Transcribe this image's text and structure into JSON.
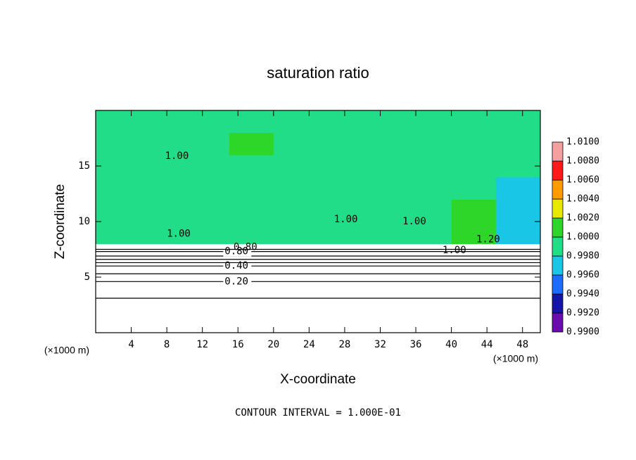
{
  "chart_data": {
    "type": "heatmap",
    "title": "saturation ratio",
    "x_label": "X-coordinate",
    "y_label": "Z-coordinate",
    "x_unit": "(×1000 m)",
    "footnote": "CONTOUR INTERVAL = 1.000E-01",
    "xlim": [
      0,
      50
    ],
    "ylim": [
      0,
      20
    ],
    "xticks": [
      4,
      8,
      12,
      16,
      20,
      24,
      28,
      32,
      36,
      40,
      44,
      48
    ],
    "yticks": [
      5,
      10,
      15
    ],
    "x_edges": [
      0,
      5,
      10,
      15,
      20,
      25,
      30,
      35,
      40,
      45,
      50
    ],
    "z_edges": [
      0,
      2,
      4,
      6,
      8,
      10,
      12,
      14,
      16,
      18,
      20
    ],
    "values": [
      [
        0.1,
        0.1,
        0.1,
        0.1,
        0.1,
        0.1,
        0.1,
        0.1,
        0.1,
        0.1
      ],
      [
        0.15,
        0.15,
        0.15,
        0.15,
        0.15,
        0.15,
        0.15,
        0.15,
        0.15,
        0.15
      ],
      [
        0.3,
        0.3,
        0.3,
        0.3,
        0.3,
        0.3,
        0.3,
        0.3,
        0.3,
        0.3
      ],
      [
        0.75,
        0.75,
        0.75,
        0.75,
        0.75,
        0.75,
        0.75,
        0.75,
        0.75,
        0.75
      ],
      [
        0.999,
        0.9993,
        0.9995,
        0.9995,
        0.999,
        0.9993,
        0.9992,
        0.9985,
        1.0012,
        0.9972
      ],
      [
        0.9992,
        0.9991,
        0.999,
        0.9995,
        0.9993,
        0.9988,
        0.999,
        0.9982,
        1.0003,
        0.997
      ],
      [
        0.9988,
        0.999,
        0.9992,
        0.9991,
        0.999,
        0.9991,
        0.9992,
        0.9988,
        0.9985,
        0.9975
      ],
      [
        0.999,
        0.9985,
        0.9988,
        0.9993,
        0.9991,
        0.9988,
        0.999,
        0.9992,
        0.999,
        0.9985
      ],
      [
        0.9992,
        0.9991,
        0.999,
        1.0012,
        0.9991,
        0.999,
        0.9992,
        0.9991,
        0.999,
        0.9992
      ],
      [
        0.9991,
        0.9991,
        0.9991,
        0.9991,
        0.9991,
        0.9991,
        0.9991,
        0.9991,
        0.9991,
        0.9991
      ]
    ],
    "colorbar": {
      "levels": [
        {
          "value": 0.99,
          "label": "0.9900"
        },
        {
          "value": 0.992,
          "label": "0.9920"
        },
        {
          "value": 0.994,
          "label": "0.9940"
        },
        {
          "value": 0.996,
          "label": "0.9960"
        },
        {
          "value": 0.998,
          "label": "0.9980"
        },
        {
          "value": 1.0,
          "label": "1.0000"
        },
        {
          "value": 1.002,
          "label": "1.0020"
        },
        {
          "value": 1.004,
          "label": "1.0040"
        },
        {
          "value": 1.006,
          "label": "1.0060"
        },
        {
          "value": 1.008,
          "label": "1.0080"
        },
        {
          "value": 1.01,
          "label": "1.0100"
        }
      ],
      "colors": [
        "#6a0dad",
        "#1414a8",
        "#1e6bff",
        "#19c6e6",
        "#22dd88",
        "#2fd62a",
        "#e8e800",
        "#ff9a00",
        "#ff1a1a",
        "#f4a0a0"
      ]
    },
    "contours": [
      {
        "value": 0.1,
        "z": 3.1
      },
      {
        "value": 0.2,
        "label": "0.20",
        "z": 4.6,
        "x": 14.5
      },
      {
        "value": 0.3,
        "z": 5.3
      },
      {
        "value": 0.4,
        "label": "0.40",
        "z": 6.0,
        "x": 14.5
      },
      {
        "value": 0.5,
        "z": 6.3
      },
      {
        "value": 0.6,
        "z": 6.6
      },
      {
        "value": 0.7,
        "z": 6.9
      },
      {
        "value": 0.8,
        "label": "0.80",
        "z": 7.3,
        "x": 14.5
      },
      {
        "value": 0.9,
        "z": 7.5
      }
    ],
    "contour_labels": [
      {
        "text": "1.00",
        "x": 7.8,
        "z": 15.9
      },
      {
        "text": "1.00",
        "x": 8.0,
        "z": 8.9
      },
      {
        "text": "0.80",
        "x": 15.5,
        "z": 7.7
      },
      {
        "text": "1.00",
        "x": 26.8,
        "z": 10.2
      },
      {
        "text": "1.00",
        "x": 34.5,
        "z": 10.0
      },
      {
        "text": "1.00",
        "x": 39.0,
        "z": 7.4
      },
      {
        "text": "1.20",
        "x": 42.8,
        "z": 8.4
      }
    ]
  }
}
